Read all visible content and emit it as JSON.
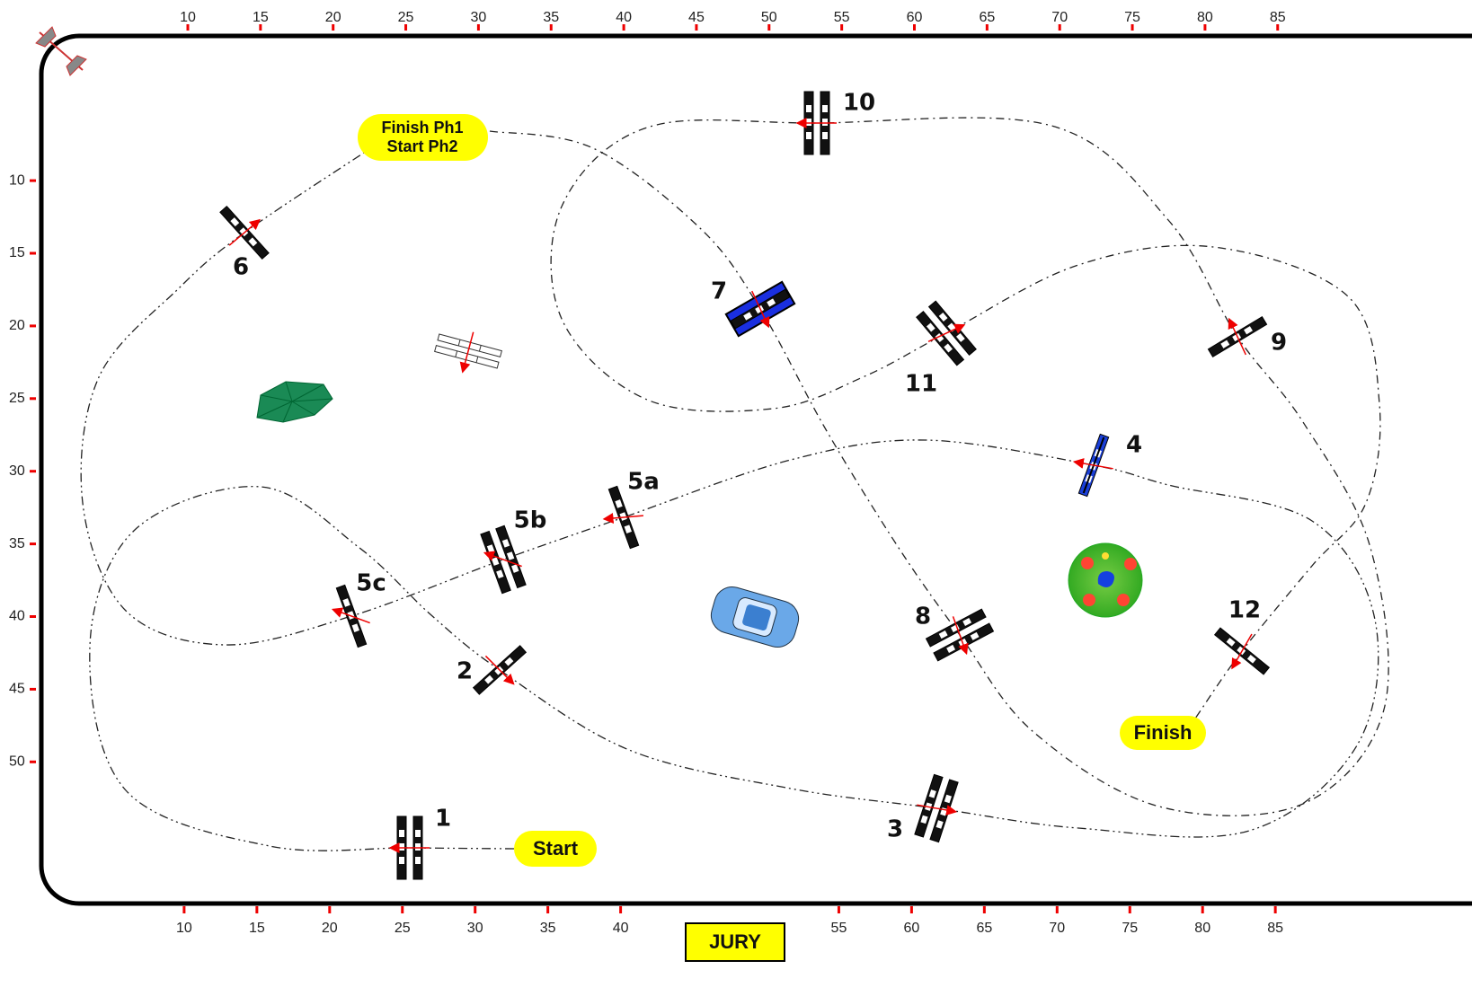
{
  "ruler": {
    "top": [
      10,
      15,
      20,
      25,
      30,
      35,
      40,
      45,
      50,
      55,
      60,
      65,
      70,
      75,
      80,
      85
    ],
    "left": [
      10,
      15,
      20,
      25,
      30,
      35,
      40,
      45,
      50
    ],
    "bottom": [
      10,
      15,
      20,
      25,
      30,
      35,
      40,
      55,
      60,
      65,
      70,
      75,
      80,
      85
    ]
  },
  "obstacles": [
    "1",
    "2",
    "3",
    "4",
    "5a",
    "5b",
    "5c",
    "6",
    "7",
    "8",
    "9",
    "10",
    "11",
    "12"
  ],
  "labels": {
    "finish_ph1": "Finish Ph1",
    "start_ph2": "Start Ph2",
    "start": "Start",
    "finish": "Finish",
    "jury": "JURY"
  }
}
